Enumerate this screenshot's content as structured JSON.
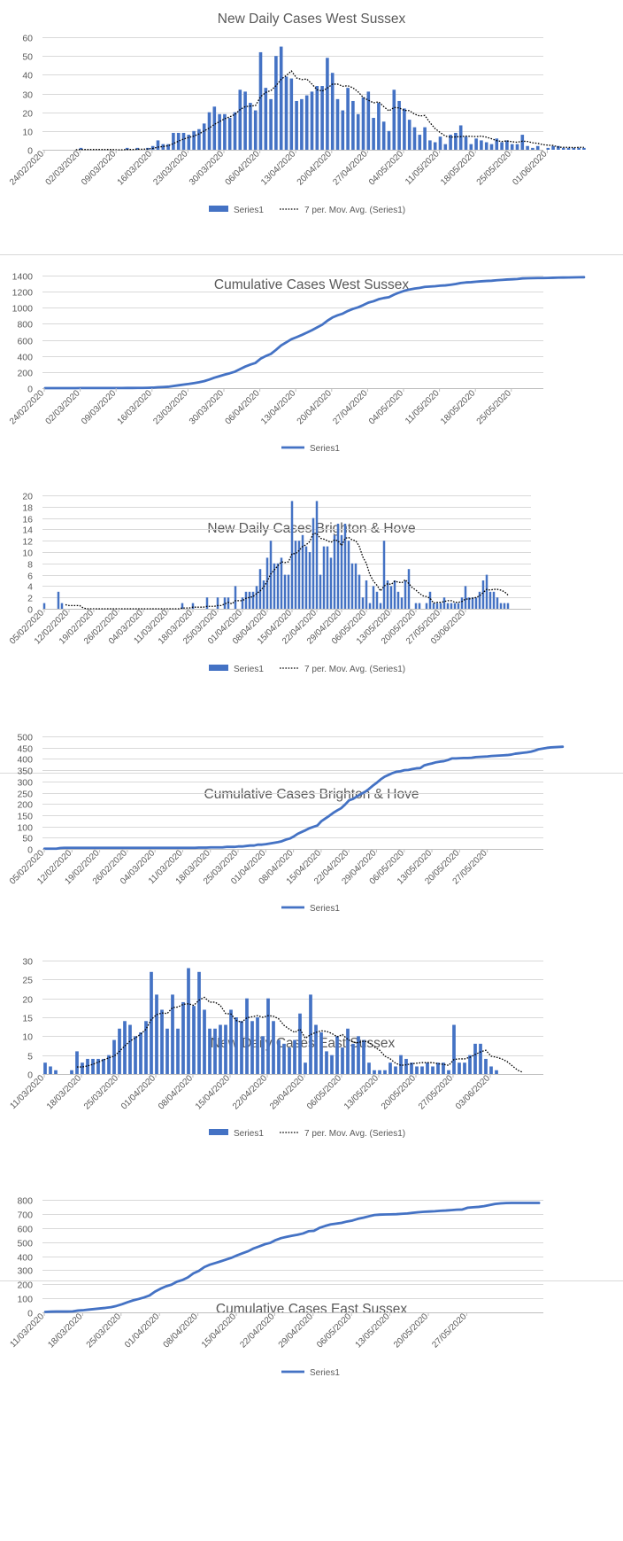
{
  "colors": {
    "bar": "#4472c4",
    "line": "#4472c4",
    "avg": "#000000",
    "grid": "#d9d9d9",
    "axis": "#bfbfbf",
    "text": "#595959"
  },
  "chart_data": [
    {
      "id": "ws-daily",
      "type": "bar",
      "title": "New Daily Cases West Sussex",
      "x_start": "24/02/2020",
      "x_labels": [
        "24/02/2020",
        "02/03/2020",
        "09/03/2020",
        "16/03/2020",
        "23/03/2020",
        "30/03/2020",
        "06/04/2020",
        "13/04/2020",
        "20/04/2020",
        "27/04/2020",
        "04/05/2020",
        "11/05/2020",
        "18/05/2020",
        "25/05/2020",
        "01/06/2020"
      ],
      "x_label_step_days": 7,
      "ylim": [
        0,
        60
      ],
      "yticks": [
        0,
        10,
        20,
        30,
        40,
        50,
        60
      ],
      "legend": [
        "Series1",
        "7 per. Mov. Avg. (Series1)"
      ],
      "values": [
        0,
        0,
        0,
        0,
        0,
        0,
        0,
        1,
        0,
        0,
        0,
        0,
        0,
        0,
        0,
        0,
        1,
        0,
        1,
        0,
        1,
        2,
        5,
        3,
        3,
        9,
        9,
        9,
        8,
        10,
        11,
        14,
        20,
        23,
        19,
        19,
        17,
        20,
        32,
        31,
        25,
        21,
        52,
        33,
        27,
        50,
        55,
        39,
        38,
        26,
        27,
        29,
        31,
        34,
        34,
        49,
        41,
        27,
        21,
        33,
        26,
        19,
        28,
        31,
        17,
        25,
        15,
        10,
        32,
        26,
        22,
        16,
        12,
        8,
        12,
        5,
        4,
        7,
        3,
        8,
        9,
        13,
        7,
        3,
        6,
        5,
        4,
        3,
        6,
        4,
        5,
        3,
        3,
        8,
        2,
        1,
        2,
        0,
        1,
        2,
        2,
        1,
        1,
        1,
        1,
        1
      ]
    },
    {
      "id": "ws-cum",
      "type": "line",
      "title": "Cumulative Cases West Sussex",
      "x_start": "24/02/2020",
      "x_labels": [
        "24/02/2020",
        "02/03/2020",
        "09/03/2020",
        "16/03/2020",
        "23/03/2020",
        "30/03/2020",
        "06/04/2020",
        "13/04/2020",
        "20/04/2020",
        "27/04/2020",
        "04/05/2020",
        "11/05/2020",
        "18/05/2020",
        "25/05/2020"
      ],
      "x_label_step_days": 7,
      "ylim": [
        0,
        1400
      ],
      "yticks": [
        0,
        200,
        400,
        600,
        800,
        1000,
        1200,
        1400
      ],
      "legend": [
        "Series1"
      ]
    },
    {
      "id": "bh-daily",
      "type": "bar",
      "title": "New Daily Cases Brighton & Hove",
      "x_start": "05/02/2020",
      "x_labels": [
        "05/02/2020",
        "12/02/2020",
        "19/02/2020",
        "26/02/2020",
        "04/03/2020",
        "11/03/2020",
        "18/03/2020",
        "25/03/2020",
        "01/04/2020",
        "08/04/2020",
        "15/04/2020",
        "22/04/2020",
        "29/04/2020",
        "06/05/2020",
        "13/05/2020",
        "20/05/2020",
        "27/05/2020",
        "03/06/2020"
      ],
      "x_label_step_days": 7,
      "ylim": [
        0,
        20
      ],
      "yticks": [
        0,
        2,
        4,
        6,
        8,
        10,
        12,
        14,
        16,
        18,
        20
      ],
      "legend": [
        "Series1",
        "7 per. Mov. Avg. (Series1)"
      ],
      "values": [
        1,
        0,
        0,
        0,
        3,
        1,
        0,
        0,
        0,
        0,
        0,
        0,
        0,
        0,
        0,
        0,
        0,
        0,
        0,
        0,
        0,
        0,
        0,
        0,
        0,
        0,
        0,
        0,
        0,
        0,
        0,
        0,
        0,
        0,
        0,
        0,
        0,
        0,
        0,
        1,
        0,
        0,
        1,
        0,
        0,
        0,
        2,
        0,
        0,
        2,
        0,
        2,
        2,
        0,
        4,
        0,
        2,
        3,
        3,
        3,
        4,
        7,
        5,
        9,
        12,
        8,
        8,
        9,
        6,
        6,
        19,
        12,
        12,
        13,
        11,
        10,
        16,
        19,
        6,
        11,
        11,
        9,
        13,
        15,
        13,
        15,
        12,
        8,
        8,
        6,
        2,
        5,
        1,
        4,
        3,
        1,
        12,
        5,
        4,
        5,
        3,
        2,
        5,
        7,
        0,
        1,
        1,
        0,
        1,
        3,
        1,
        1,
        1,
        2,
        1,
        1,
        1,
        1,
        2,
        4,
        2,
        2,
        2,
        3,
        5,
        6,
        3,
        3,
        2,
        1,
        1,
        1
      ]
    },
    {
      "id": "bh-cum",
      "type": "line",
      "title": "Cumulative Cases Brighton & Hove",
      "x_start": "05/02/2020",
      "x_labels": [
        "05/02/2020",
        "12/02/2020",
        "19/02/2020",
        "26/02/2020",
        "04/03/2020",
        "11/03/2020",
        "18/03/2020",
        "25/03/2020",
        "01/04/2020",
        "08/04/2020",
        "15/04/2020",
        "22/04/2020",
        "29/04/2020",
        "06/05/2020",
        "13/05/2020",
        "20/05/2020",
        "27/05/2020"
      ],
      "x_label_step_days": 7,
      "ylim": [
        0,
        500
      ],
      "yticks": [
        0,
        50,
        100,
        150,
        200,
        250,
        300,
        350,
        400,
        450,
        500
      ],
      "legend": [
        "Series1"
      ]
    },
    {
      "id": "es-daily",
      "type": "bar",
      "title": "New Daily Cases East Sussex",
      "x_start": "11/03/2020",
      "x_labels": [
        "11/03/2020",
        "18/03/2020",
        "25/03/2020",
        "01/04/2020",
        "08/04/2020",
        "15/04/2020",
        "22/04/2020",
        "29/04/2020",
        "06/05/2020",
        "13/05/2020",
        "20/05/2020",
        "27/05/2020",
        "03/06/2020"
      ],
      "x_label_step_days": 7,
      "ylim": [
        0,
        30
      ],
      "yticks": [
        0,
        5,
        10,
        15,
        20,
        25,
        30
      ],
      "legend": [
        "Series1",
        "7 per. Mov. Avg. (Series1)"
      ],
      "values": [
        3,
        2,
        1,
        0,
        0,
        1,
        6,
        3,
        4,
        4,
        4,
        4,
        5,
        9,
        12,
        14,
        13,
        10,
        11,
        14,
        27,
        21,
        17,
        12,
        21,
        12,
        19,
        28,
        18,
        27,
        17,
        12,
        12,
        13,
        13,
        17,
        15,
        14,
        20,
        14,
        15,
        10,
        20,
        14,
        9,
        8,
        7,
        9,
        16,
        3,
        21,
        13,
        11,
        6,
        5,
        10,
        7,
        12,
        8,
        10,
        9,
        3,
        1,
        1,
        1,
        3,
        2,
        5,
        4,
        3,
        2,
        2,
        3,
        2,
        3,
        3,
        1,
        13,
        3,
        3,
        5,
        8,
        8,
        4,
        2,
        1,
        0,
        0,
        0,
        0,
        0
      ]
    },
    {
      "id": "es-cum",
      "type": "line",
      "title": "Cumulative Cases East Sussex",
      "x_start": "11/03/2020",
      "x_labels": [
        "11/03/2020",
        "18/03/2020",
        "25/03/2020",
        "01/04/2020",
        "08/04/2020",
        "15/04/2020",
        "22/04/2020",
        "29/04/2020",
        "06/05/2020",
        "13/05/2020",
        "20/05/2020",
        "27/05/2020"
      ],
      "x_label_step_days": 7,
      "ylim": [
        0,
        800
      ],
      "yticks": [
        0,
        100,
        200,
        300,
        400,
        500,
        600,
        700,
        800
      ],
      "legend": [
        "Series1"
      ]
    }
  ]
}
